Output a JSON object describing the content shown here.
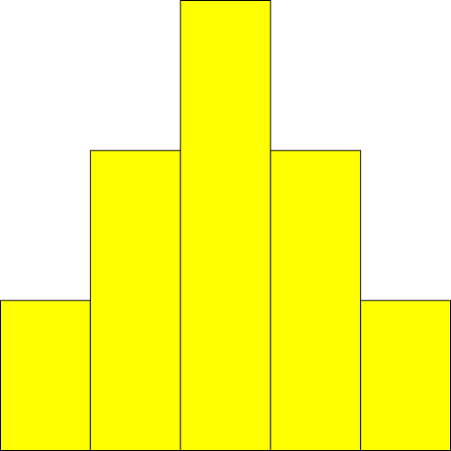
{
  "chart_data": {
    "type": "bar",
    "values": [
      1,
      2,
      3,
      2,
      1
    ],
    "ylim": [
      0,
      3
    ],
    "grid": false,
    "legend": "none",
    "bar_color": "#ffff00",
    "edge_color": "#000000",
    "background_color": "#ffffff"
  }
}
